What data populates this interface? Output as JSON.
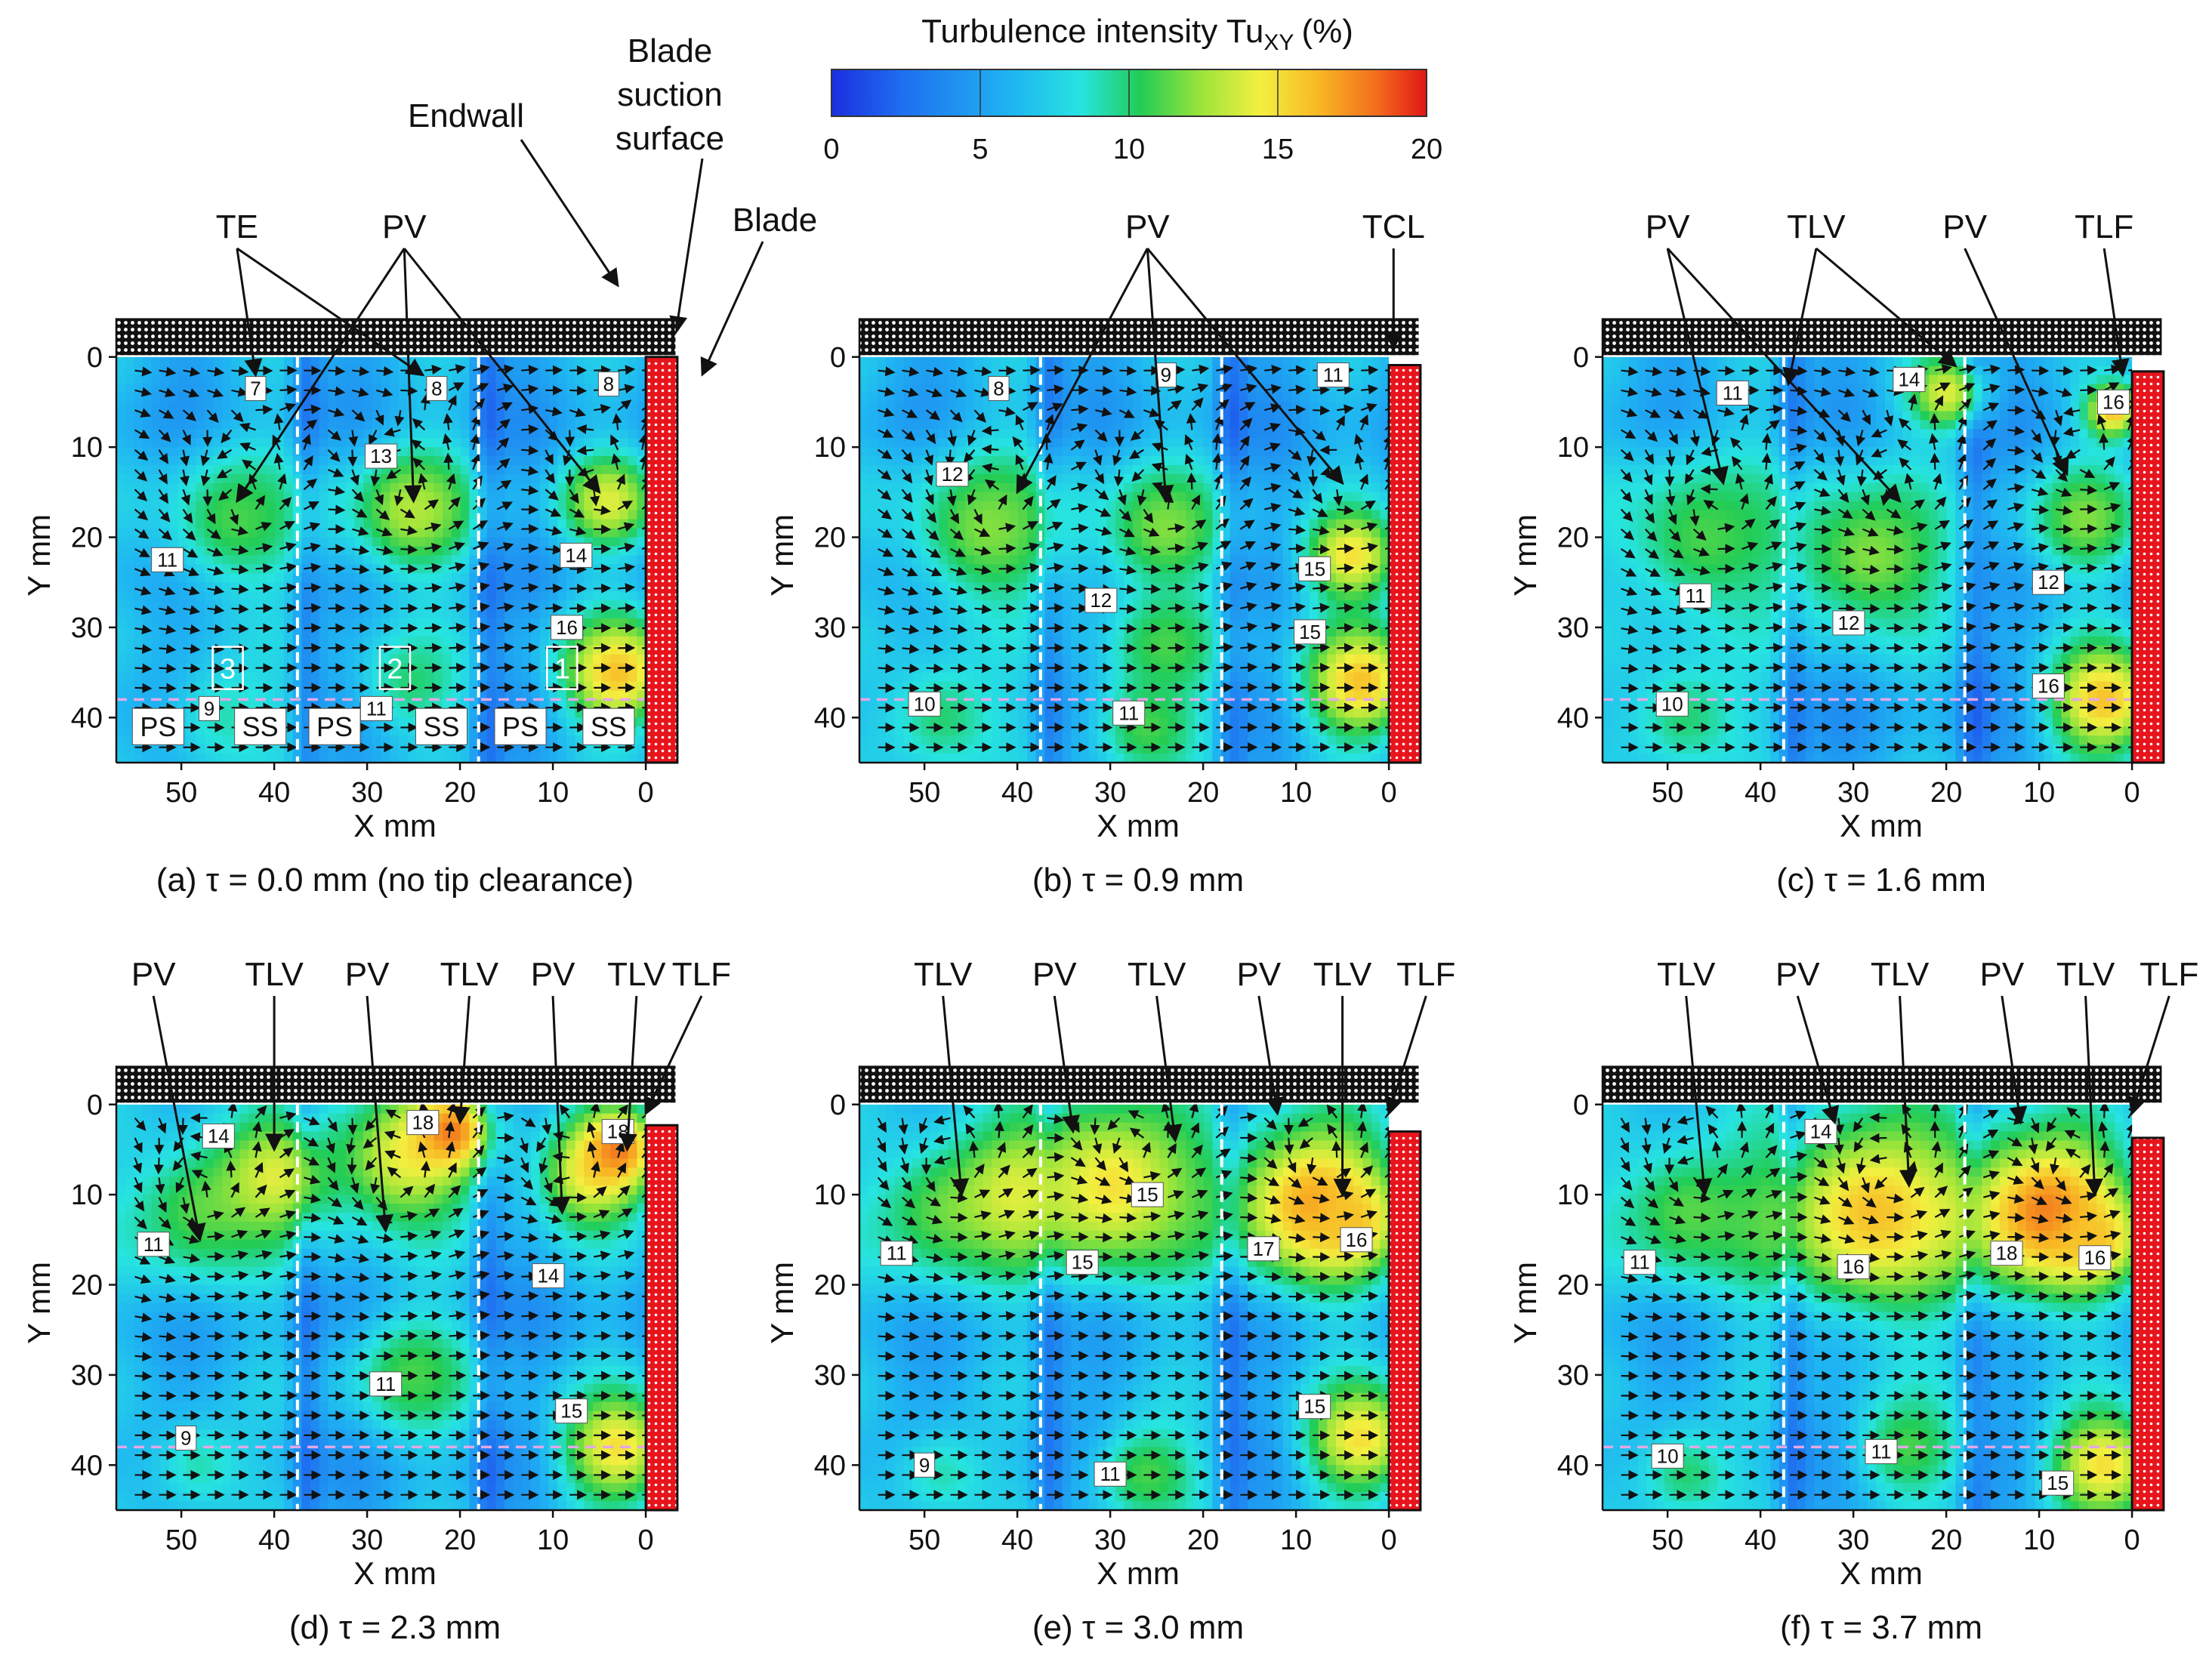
{
  "colorbar": {
    "title": "Turbulence intensity Tu",
    "title_sub": "XY",
    "title_unit": "(%)",
    "ticks": [
      "0",
      "5",
      "10",
      "15",
      "20"
    ],
    "range": [
      0,
      20
    ]
  },
  "colors": {
    "blade": "#e8141c",
    "endwall": "#111111",
    "arrow": "#111111",
    "dash_white": "#ffffff",
    "dash_pink": "#e3a8e6"
  },
  "top_annotations": {
    "endwall": "Endwall",
    "suction1": "Blade",
    "suction2": "suction",
    "suction3": "surface",
    "blade": "Blade"
  },
  "chart_data": [
    {
      "type": "heatmap",
      "id": "a",
      "caption": "(a) τ = 0.0 mm (no tip clearance)",
      "tau_mm": 0.0,
      "xlabel": "X mm",
      "ylabel": "Y mm",
      "xlim": [
        57,
        -3
      ],
      "ylim": [
        45,
        -4
      ],
      "xticks": [
        "50",
        "40",
        "30",
        "20",
        "10",
        "0"
      ],
      "yticks": [
        "0",
        "10",
        "20",
        "30",
        "40"
      ],
      "blade_gap_mm": 0.0,
      "annotations": [
        "TE",
        "PV"
      ],
      "blobs": [
        {
          "x": 44,
          "y": 18,
          "r": 8,
          "v": 11
        },
        {
          "x": 25,
          "y": 17,
          "r": 7,
          "v": 13
        },
        {
          "x": 4,
          "y": 16,
          "r": 5,
          "v": 14
        },
        {
          "x": 3,
          "y": 35,
          "r": 6,
          "v": 16
        },
        {
          "x": 25,
          "y": 36,
          "r": 6,
          "v": 10
        },
        {
          "x": 45,
          "y": 40,
          "r": 7,
          "v": 9
        }
      ],
      "vortices": [
        {
          "x": 44,
          "y": 17,
          "r": 9
        },
        {
          "x": 25,
          "y": 16,
          "r": 9
        },
        {
          "x": 5,
          "y": 15,
          "r": 7
        }
      ],
      "labels": [
        {
          "x": 42,
          "y": 3.5,
          "t": "7"
        },
        {
          "x": 22.5,
          "y": 3.5,
          "t": "8"
        },
        {
          "x": 4,
          "y": 3,
          "t": "8"
        },
        {
          "x": 28.5,
          "y": 11,
          "t": "13"
        },
        {
          "x": 51.5,
          "y": 22.5,
          "t": "11"
        },
        {
          "x": 7.5,
          "y": 22,
          "t": "14"
        },
        {
          "x": 8.5,
          "y": 30,
          "t": "16"
        },
        {
          "x": 47,
          "y": 39,
          "t": "9"
        },
        {
          "x": 29,
          "y": 39,
          "t": "11"
        }
      ],
      "region_numbers": [
        "3",
        "2",
        "1"
      ],
      "region_sides": [
        "PS",
        "SS",
        "PS",
        "SS",
        "PS",
        "SS"
      ]
    },
    {
      "type": "heatmap",
      "id": "b",
      "caption": "(b) τ = 0.9 mm",
      "tau_mm": 0.9,
      "xlabel": "X mm",
      "ylabel": "Y mm",
      "xlim": [
        57,
        -3
      ],
      "ylim": [
        45,
        -4
      ],
      "xticks": [
        "50",
        "40",
        "30",
        "20",
        "10",
        "0"
      ],
      "yticks": [
        "0",
        "10",
        "20",
        "30",
        "40"
      ],
      "blade_gap_mm": 0.9,
      "annotations": [
        "PV",
        "TCL"
      ],
      "blobs": [
        {
          "x": 43,
          "y": 19,
          "r": 9,
          "v": 12
        },
        {
          "x": 24,
          "y": 19,
          "r": 7,
          "v": 12
        },
        {
          "x": 24,
          "y": 32,
          "r": 6,
          "v": 11
        },
        {
          "x": 4,
          "y": 22,
          "r": 5,
          "v": 15
        },
        {
          "x": 3,
          "y": 36,
          "r": 6,
          "v": 16
        },
        {
          "x": 48,
          "y": 40,
          "r": 7,
          "v": 10
        },
        {
          "x": 26,
          "y": 41,
          "r": 6,
          "v": 11
        }
      ],
      "vortices": [
        {
          "x": 43,
          "y": 17,
          "r": 9
        },
        {
          "x": 24,
          "y": 17,
          "r": 9
        },
        {
          "x": 5,
          "y": 15,
          "r": 6
        }
      ],
      "labels": [
        {
          "x": 42,
          "y": 3.5,
          "t": "8"
        },
        {
          "x": 24,
          "y": 2,
          "t": "9"
        },
        {
          "x": 6,
          "y": 2,
          "t": "11"
        },
        {
          "x": 47,
          "y": 13,
          "t": "12"
        },
        {
          "x": 31,
          "y": 27,
          "t": "12"
        },
        {
          "x": 8,
          "y": 23.5,
          "t": "15"
        },
        {
          "x": 8.5,
          "y": 30.5,
          "t": "15"
        },
        {
          "x": 50,
          "y": 38.5,
          "t": "10"
        },
        {
          "x": 28,
          "y": 39.5,
          "t": "11"
        }
      ]
    },
    {
      "type": "heatmap",
      "id": "c",
      "caption": "(c) τ = 1.6 mm",
      "tau_mm": 1.6,
      "xlabel": "X mm",
      "ylabel": "Y mm",
      "xlim": [
        57,
        -3
      ],
      "ylim": [
        45,
        -4
      ],
      "xticks": [
        "50",
        "40",
        "30",
        "20",
        "10",
        "0"
      ],
      "yticks": [
        "0",
        "10",
        "20",
        "30",
        "40"
      ],
      "blade_gap_mm": 1.6,
      "annotations": [
        "PV",
        "TLV",
        "PV",
        "TLF"
      ],
      "blobs": [
        {
          "x": 46,
          "y": 20,
          "r": 10,
          "v": 11
        },
        {
          "x": 28,
          "y": 22,
          "r": 9,
          "v": 12
        },
        {
          "x": 20,
          "y": 4,
          "r": 4,
          "v": 14
        },
        {
          "x": 5,
          "y": 18,
          "r": 6,
          "v": 12
        },
        {
          "x": 3,
          "y": 38,
          "r": 6,
          "v": 16
        },
        {
          "x": 2,
          "y": 6,
          "r": 3,
          "v": 16
        },
        {
          "x": 48,
          "y": 40,
          "r": 7,
          "v": 10
        }
      ],
      "vortices": [
        {
          "x": 45,
          "y": 18,
          "r": 9
        },
        {
          "x": 25,
          "y": 16,
          "r": 9
        },
        {
          "x": 5,
          "y": 12,
          "r": 6
        }
      ],
      "labels": [
        {
          "x": 43,
          "y": 4,
          "t": "11"
        },
        {
          "x": 24,
          "y": 2.5,
          "t": "14"
        },
        {
          "x": 2,
          "y": 5,
          "t": "16"
        },
        {
          "x": 47,
          "y": 26.5,
          "t": "11"
        },
        {
          "x": 30.5,
          "y": 29.5,
          "t": "12"
        },
        {
          "x": 9,
          "y": 25,
          "t": "12"
        },
        {
          "x": 9,
          "y": 36.5,
          "t": "16"
        },
        {
          "x": 49.5,
          "y": 38.5,
          "t": "10"
        }
      ]
    },
    {
      "type": "heatmap",
      "id": "d",
      "caption": "(d) τ = 2.3 mm",
      "tau_mm": 2.3,
      "xlabel": "X mm",
      "ylabel": "Y mm",
      "xlim": [
        57,
        -3
      ],
      "ylim": [
        45,
        -4
      ],
      "xticks": [
        "50",
        "40",
        "30",
        "20",
        "10",
        "0"
      ],
      "yticks": [
        "0",
        "10",
        "20",
        "30",
        "40"
      ],
      "blade_gap_mm": 2.3,
      "annotations": [
        "PV",
        "TLV",
        "PV",
        "TLV",
        "PV",
        "TLV",
        "TLF"
      ],
      "blobs": [
        {
          "x": 48,
          "y": 12,
          "r": 9,
          "v": 11
        },
        {
          "x": 40,
          "y": 8,
          "r": 6,
          "v": 14
        },
        {
          "x": 26,
          "y": 6,
          "r": 8,
          "v": 14
        },
        {
          "x": 21,
          "y": 3,
          "r": 4,
          "v": 18
        },
        {
          "x": 6,
          "y": 8,
          "r": 6,
          "v": 14
        },
        {
          "x": 3,
          "y": 5,
          "r": 4,
          "v": 18
        },
        {
          "x": 25,
          "y": 30,
          "r": 7,
          "v": 11
        },
        {
          "x": 3,
          "y": 38,
          "r": 6,
          "v": 15
        },
        {
          "x": 48,
          "y": 40,
          "r": 6,
          "v": 9
        }
      ],
      "vortices": [
        {
          "x": 48,
          "y": 11,
          "r": 9
        },
        {
          "x": 27,
          "y": 10,
          "r": 9
        },
        {
          "x": 8,
          "y": 9,
          "r": 7
        }
      ],
      "labels": [
        {
          "x": 46,
          "y": 3.5,
          "t": "14"
        },
        {
          "x": 24,
          "y": 2,
          "t": "18"
        },
        {
          "x": 3,
          "y": 3,
          "t": "18"
        },
        {
          "x": 53,
          "y": 15.5,
          "t": "11"
        },
        {
          "x": 10.5,
          "y": 19,
          "t": "14"
        },
        {
          "x": 28,
          "y": 31,
          "t": "11"
        },
        {
          "x": 8,
          "y": 34,
          "t": "15"
        },
        {
          "x": 49.5,
          "y": 37,
          "t": "9"
        }
      ]
    },
    {
      "type": "heatmap",
      "id": "e",
      "caption": "(e) τ = 3.0 mm",
      "tau_mm": 3.0,
      "xlabel": "X mm",
      "ylabel": "Y mm",
      "xlim": [
        57,
        -3
      ],
      "ylim": [
        45,
        -4
      ],
      "xticks": [
        "50",
        "40",
        "30",
        "20",
        "10",
        "0"
      ],
      "yticks": [
        "0",
        "10",
        "20",
        "30",
        "40"
      ],
      "blade_gap_mm": 3.0,
      "annotations": [
        "TLV",
        "PV",
        "TLV",
        "PV",
        "TLV",
        "TLF"
      ],
      "blobs": [
        {
          "x": 48,
          "y": 12,
          "r": 9,
          "v": 11
        },
        {
          "x": 30,
          "y": 9,
          "r": 10,
          "v": 15
        },
        {
          "x": 40,
          "y": 10,
          "r": 6,
          "v": 14
        },
        {
          "x": 8,
          "y": 11,
          "r": 9,
          "v": 17
        },
        {
          "x": 4,
          "y": 13,
          "r": 4,
          "v": 16
        },
        {
          "x": 3,
          "y": 37,
          "r": 6,
          "v": 15
        },
        {
          "x": 48,
          "y": 41,
          "r": 6,
          "v": 9
        },
        {
          "x": 26,
          "y": 41,
          "r": 6,
          "v": 11
        }
      ],
      "vortices": [
        {
          "x": 47,
          "y": 8,
          "r": 9
        },
        {
          "x": 27,
          "y": 6,
          "r": 8
        },
        {
          "x": 7,
          "y": 7,
          "r": 7
        }
      ],
      "labels": [
        {
          "x": 26,
          "y": 10,
          "t": "15"
        },
        {
          "x": 33,
          "y": 17.5,
          "t": "15"
        },
        {
          "x": 53,
          "y": 16.5,
          "t": "11"
        },
        {
          "x": 13.5,
          "y": 16,
          "t": "17"
        },
        {
          "x": 3.5,
          "y": 15,
          "t": "16"
        },
        {
          "x": 8,
          "y": 33.5,
          "t": "15"
        },
        {
          "x": 50,
          "y": 40,
          "t": "9"
        },
        {
          "x": 30,
          "y": 41,
          "t": "11"
        }
      ]
    },
    {
      "type": "heatmap",
      "id": "f",
      "caption": "(f) τ = 3.7 mm",
      "tau_mm": 3.7,
      "xlabel": "X mm",
      "ylabel": "Y mm",
      "xlim": [
        57,
        -3
      ],
      "ylim": [
        45,
        -4
      ],
      "xticks": [
        "50",
        "40",
        "30",
        "20",
        "10",
        "0"
      ],
      "yticks": [
        "0",
        "10",
        "20",
        "30",
        "40"
      ],
      "blade_gap_mm": 3.7,
      "annotations": [
        "TLV",
        "PV",
        "TLV",
        "PV",
        "TLV",
        "TLF"
      ],
      "blobs": [
        {
          "x": 48,
          "y": 12,
          "r": 9,
          "v": 11
        },
        {
          "x": 28,
          "y": 12,
          "r": 11,
          "v": 16
        },
        {
          "x": 9,
          "y": 12,
          "r": 9,
          "v": 18
        },
        {
          "x": 4,
          "y": 15,
          "r": 4,
          "v": 16
        },
        {
          "x": 3,
          "y": 40,
          "r": 6,
          "v": 15
        },
        {
          "x": 48,
          "y": 41,
          "r": 6,
          "v": 10
        },
        {
          "x": 24,
          "y": 38,
          "r": 6,
          "v": 11
        }
      ],
      "vortices": [
        {
          "x": 47,
          "y": 8,
          "r": 9
        },
        {
          "x": 26,
          "y": 9,
          "r": 9
        },
        {
          "x": 6,
          "y": 8,
          "r": 7
        }
      ],
      "labels": [
        {
          "x": 33.5,
          "y": 3,
          "t": "14"
        },
        {
          "x": 53,
          "y": 17.5,
          "t": "11"
        },
        {
          "x": 30,
          "y": 18,
          "t": "16"
        },
        {
          "x": 13.5,
          "y": 16.5,
          "t": "18"
        },
        {
          "x": 4,
          "y": 17,
          "t": "16"
        },
        {
          "x": 27,
          "y": 38.5,
          "t": "11"
        },
        {
          "x": 50,
          "y": 39,
          "t": "10"
        },
        {
          "x": 8,
          "y": 42,
          "t": "15"
        }
      ]
    }
  ]
}
